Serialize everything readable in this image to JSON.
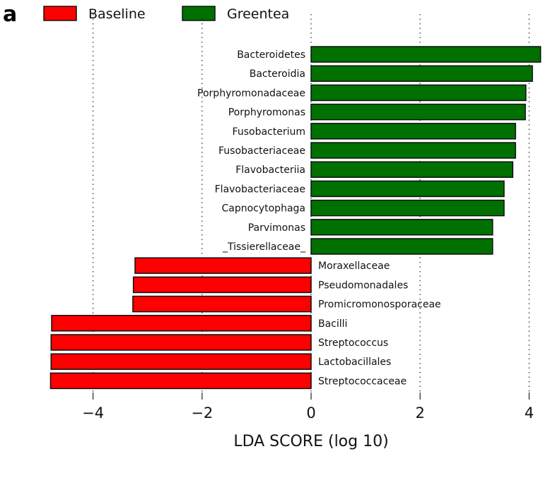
{
  "panel_label": "a",
  "chart_data": {
    "type": "bar",
    "orientation": "horizontal",
    "xlabel": "LDA SCORE (log 10)",
    "xlim": [
      -4.9,
      4.3
    ],
    "xticks": [
      -4,
      -2,
      0,
      2,
      4
    ],
    "xtick_labels": [
      "−4",
      "−2",
      "0",
      "2",
      "4"
    ],
    "grid": "vertical dotted",
    "legend": {
      "placement": "top",
      "entries": [
        {
          "name": "Baseline",
          "color": "#ff0000"
        },
        {
          "name": "Greentea",
          "color": "#007000"
        }
      ]
    },
    "bars": [
      {
        "label": "Bacteroidetes",
        "value": 4.21,
        "group": "Greentea"
      },
      {
        "label": "Bacteroidia",
        "value": 4.06,
        "group": "Greentea"
      },
      {
        "label": "Porphyromonadaceae",
        "value": 3.94,
        "group": "Greentea"
      },
      {
        "label": "Porphyromonas",
        "value": 3.93,
        "group": "Greentea"
      },
      {
        "label": "Fusobacterium",
        "value": 3.75,
        "group": "Greentea"
      },
      {
        "label": "Fusobacteriaceae",
        "value": 3.75,
        "group": "Greentea"
      },
      {
        "label": "Flavobacteriia",
        "value": 3.7,
        "group": "Greentea"
      },
      {
        "label": "Flavobacteriaceae",
        "value": 3.54,
        "group": "Greentea"
      },
      {
        "label": "Capnocytophaga",
        "value": 3.54,
        "group": "Greentea"
      },
      {
        "label": "Parvimonas",
        "value": 3.33,
        "group": "Greentea"
      },
      {
        "label": "_Tissierellaceae_",
        "value": 3.33,
        "group": "Greentea"
      },
      {
        "label": "Moraxellaceae",
        "value": -3.23,
        "group": "Baseline"
      },
      {
        "label": "Pseudomonadales",
        "value": -3.26,
        "group": "Baseline"
      },
      {
        "label": "Promicromonosporaceae",
        "value": -3.27,
        "group": "Baseline"
      },
      {
        "label": "Bacilli",
        "value": -4.76,
        "group": "Baseline"
      },
      {
        "label": "Streptococcus",
        "value": -4.77,
        "group": "Baseline"
      },
      {
        "label": "Lactobacillales",
        "value": -4.77,
        "group": "Baseline"
      },
      {
        "label": "Streptococcaceae",
        "value": -4.78,
        "group": "Baseline"
      }
    ]
  }
}
